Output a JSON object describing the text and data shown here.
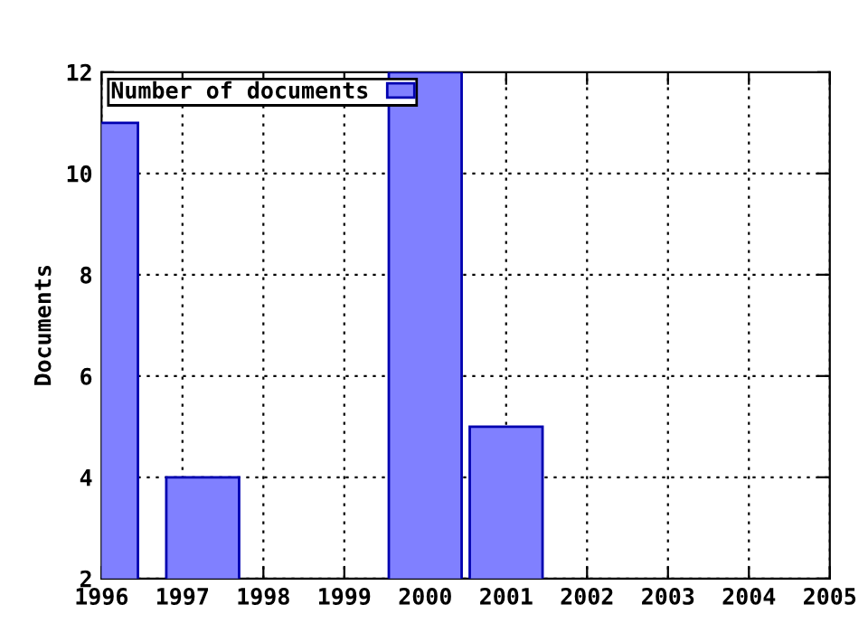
{
  "chart_data": {
    "type": "bar",
    "ylabel": "Documents",
    "series": [
      {
        "name": "Number of documents",
        "color": "#8080ff",
        "x": [
          1996,
          1997.25,
          2000,
          2001
        ],
        "values": [
          11,
          4,
          12,
          5
        ]
      }
    ],
    "xlim": [
      1996,
      2005
    ],
    "xticks": [
      1996,
      1997,
      1998,
      1999,
      2000,
      2001,
      2002,
      2003,
      2004,
      2005
    ],
    "ylim": [
      2,
      12
    ],
    "yticks": [
      2,
      4,
      6,
      8,
      10,
      12
    ],
    "grid": true,
    "legend": "top left"
  }
}
